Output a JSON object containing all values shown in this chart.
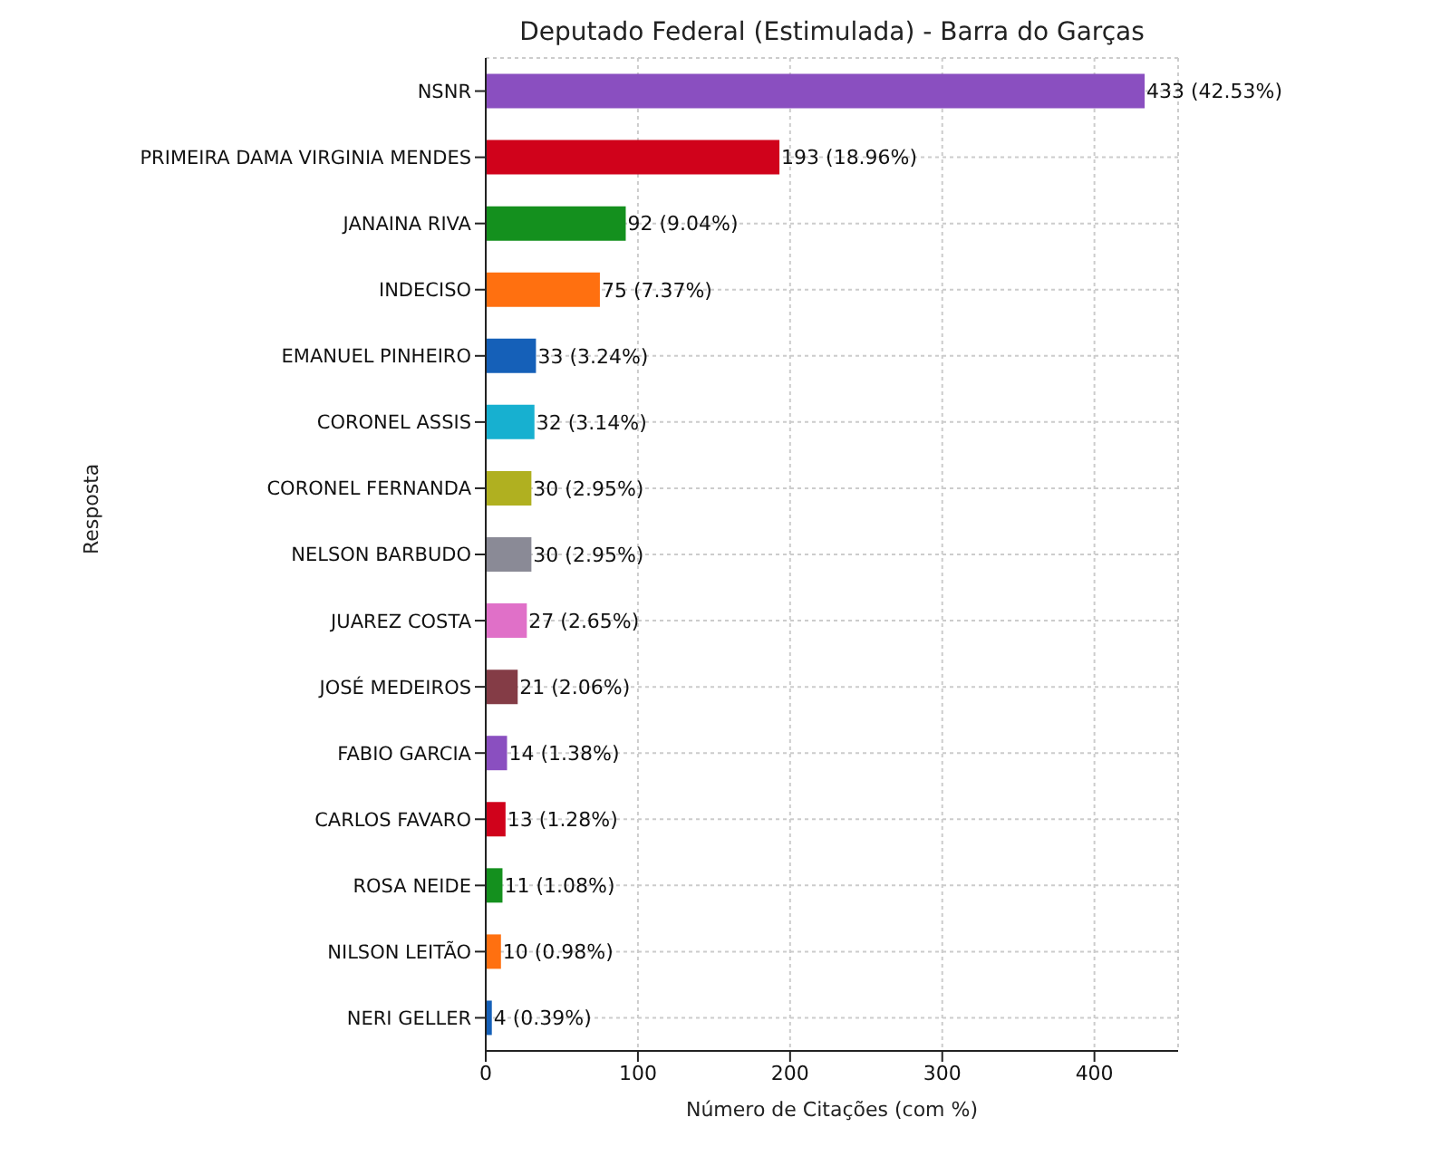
{
  "chart_data": {
    "type": "bar",
    "orientation": "horizontal",
    "title": "Deputado Federal (Estimulada) - Barra do Garças",
    "xlabel": "Número de Citações (com %)",
    "ylabel": "Resposta",
    "categories": [
      "NSNR",
      "PRIMEIRA DAMA VIRGINIA MENDES",
      "JANAINA RIVA",
      "INDECISO",
      "EMANUEL PINHEIRO",
      "CORONEL ASSIS",
      "CORONEL FERNANDA",
      "NELSON BARBUDO",
      "JUAREZ COSTA",
      "JOSÉ MEDEIROS",
      "FABIO GARCIA",
      "CARLOS FAVARO",
      "ROSA NEIDE",
      "NILSON LEITÃO",
      "NERI GELLER"
    ],
    "values": [
      433,
      193,
      92,
      75,
      33,
      32,
      30,
      30,
      27,
      21,
      14,
      13,
      11,
      10,
      4
    ],
    "value_labels": [
      "433 (42.53%)",
      "193 (18.96%)",
      "92 (9.04%)",
      "75 (7.37%)",
      "33 (3.24%)",
      "32 (3.14%)",
      "30 (2.95%)",
      "30 (2.95%)",
      "27 (2.65%)",
      "21 (2.06%)",
      "14 (1.38%)",
      "13 (1.28%)",
      "11 (1.08%)",
      "10 (0.98%)",
      "4 (0.39%)"
    ],
    "colors": [
      "#8a4fc0",
      "#d0021b",
      "#14901e",
      "#ff7010",
      "#1560b8",
      "#17b0d0",
      "#b0b020",
      "#8a8a96",
      "#e070c8",
      "#843c46",
      "#8a4fc0",
      "#d0021b",
      "#14901e",
      "#ff7010",
      "#1560b8"
    ],
    "xlim": [
      0,
      455
    ],
    "xticks": [
      0,
      100,
      200,
      300,
      400
    ],
    "grid": true
  }
}
